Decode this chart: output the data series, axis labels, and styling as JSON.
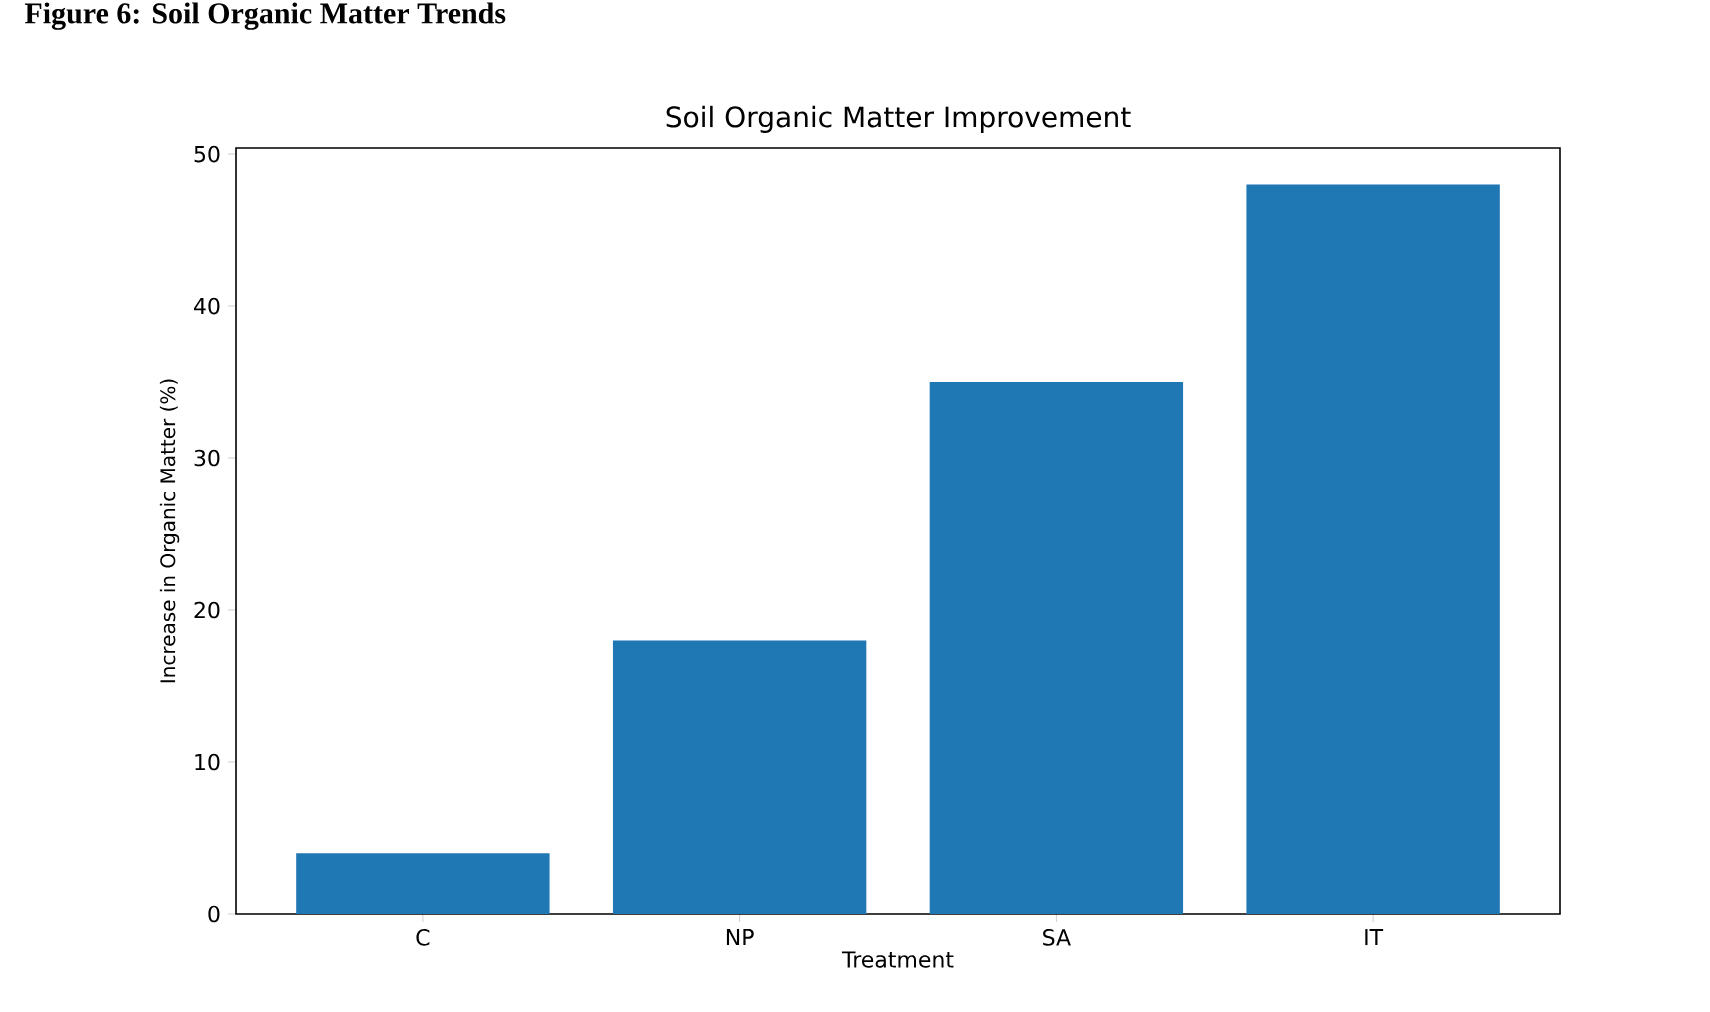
{
  "chart_data": {
    "type": "bar",
    "title": "Soil Organic Matter Improvement",
    "xlabel": "Treatment",
    "ylabel": "Increase in Organic Matter (%)",
    "annotations": [
      "Figure 6: Soil Organic Matter Trends"
    ],
    "categories": [
      "C",
      "NP",
      "SA",
      "IT"
    ],
    "values": [
      4,
      18,
      35,
      48
    ],
    "color": "#1f77b4",
    "ylim": [
      0,
      50.4
    ],
    "yticks": [
      0,
      10,
      20,
      30,
      40,
      50
    ],
    "grid": false
  }
}
